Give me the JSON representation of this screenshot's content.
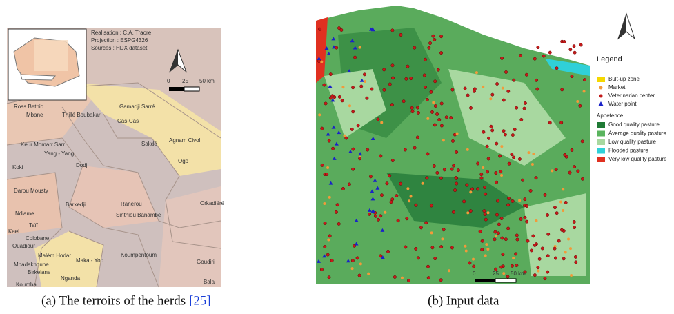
{
  "left_map": {
    "inset_text": [
      "Realisation : C.A. Traore",
      "Projection : ESPG4326",
      "Sources : HDX dataset"
    ],
    "scale": [
      "0",
      "25",
      "50 km"
    ],
    "places": [
      "Ross Bethio",
      "Gamadji Sarré",
      "Mbane",
      "Thillé Boubakar",
      "Cas-Cas",
      "Sakdé",
      "Agnam Civol",
      "Keur Momarr Sarr",
      "Yang - Yang",
      "Ogo",
      "Koki",
      "Dodji",
      "Darou Mousty",
      "Ranérou",
      "Orkadiéré",
      "Barkedji",
      "Sinthiou Banambe",
      "Ndiame",
      "Taïf",
      "Kael",
      "Colobane",
      "Ouadiour",
      "Koumpentoum",
      "Malèm Hodar",
      "Maka - Yop",
      "Goudiri",
      "Mbadakhoune",
      "Birkelane",
      "Nganda",
      "Koumbal",
      "Bala"
    ]
  },
  "right_map": {
    "legend_title": "Legend",
    "items": [
      "Bult-up zone",
      "Market",
      "Veterinarian center",
      "Water point"
    ],
    "group_title": "Appetence",
    "classes": [
      "Good quality pasture",
      "Average quality pasture",
      "Low quality pasture",
      "Flooded pasture",
      "Very low quality pasture"
    ],
    "scale": [
      "0",
      "25",
      "50 km"
    ]
  },
  "captions": {
    "a": {
      "text": "(a) The terroirs of the herds",
      "citation": "[25]"
    },
    "b": "(b) Input data"
  }
}
